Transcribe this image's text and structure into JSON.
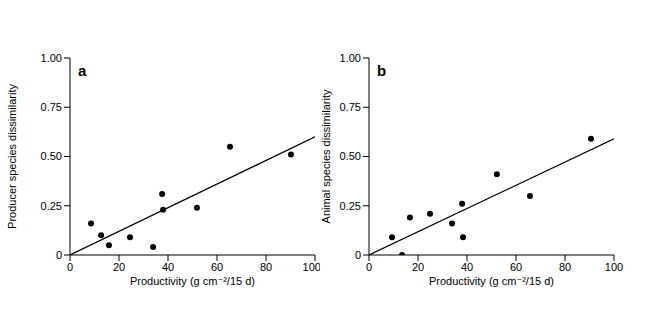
{
  "chart_data": [
    {
      "type": "scatter",
      "title": "a",
      "x_label": "Productivity (g cm⁻²/15 d)",
      "y_label": "Producer species dissimilarity",
      "xlim": [
        0,
        100
      ],
      "xticks": [
        0,
        20,
        40,
        60,
        80,
        100
      ],
      "ylim": [
        0,
        1
      ],
      "yticks": [
        0,
        0.25,
        {
          "value": 0.5,
          "label": "0.50"
        },
        0.75,
        {
          "value": 1,
          "label": "1.00"
        }
      ],
      "series": [
        {
          "type": "scatter",
          "marker": "circle",
          "color": "#000000",
          "x": [
            8.6,
            12.7,
            15.9,
            24.5,
            33.9,
            37.6,
            38.0,
            51.8,
            65.3,
            90.2
          ],
          "values": [
            0.16,
            0.1,
            0.05,
            0.09,
            0.04,
            0.31,
            0.23,
            0.24,
            0.55,
            0.51
          ]
        },
        {
          "type": "line",
          "line_style": "solid",
          "color": "#000000",
          "x": [
            0,
            100
          ],
          "values": [
            0,
            0.6
          ]
        }
      ]
    },
    {
      "type": "scatter",
      "title": "b",
      "x_label": "Productivity (g cm⁻²/15 d)",
      "y_label": "Animal species dissimilarity",
      "xlim": [
        0,
        100
      ],
      "xticks": [
        0,
        20,
        40,
        60,
        80,
        100
      ],
      "ylim": [
        0,
        1
      ],
      "yticks": [
        0,
        0.25,
        {
          "value": 0.5,
          "label": "0.50"
        },
        0.75,
        {
          "value": 1,
          "label": "1.00"
        }
      ],
      "series": [
        {
          "type": "scatter",
          "marker": "circle",
          "color": "#000000",
          "x": [
            9.4,
            13.5,
            16.7,
            24.9,
            33.9,
            38.0,
            38.4,
            52.2,
            65.7,
            90.6
          ],
          "values": [
            0.09,
            0.0,
            0.19,
            0.21,
            0.16,
            0.26,
            0.09,
            0.41,
            0.3,
            0.59
          ]
        },
        {
          "type": "line",
          "line_style": "solid",
          "color": "#000000",
          "x": [
            0,
            100
          ],
          "values": [
            0,
            0.59
          ]
        }
      ]
    }
  ]
}
